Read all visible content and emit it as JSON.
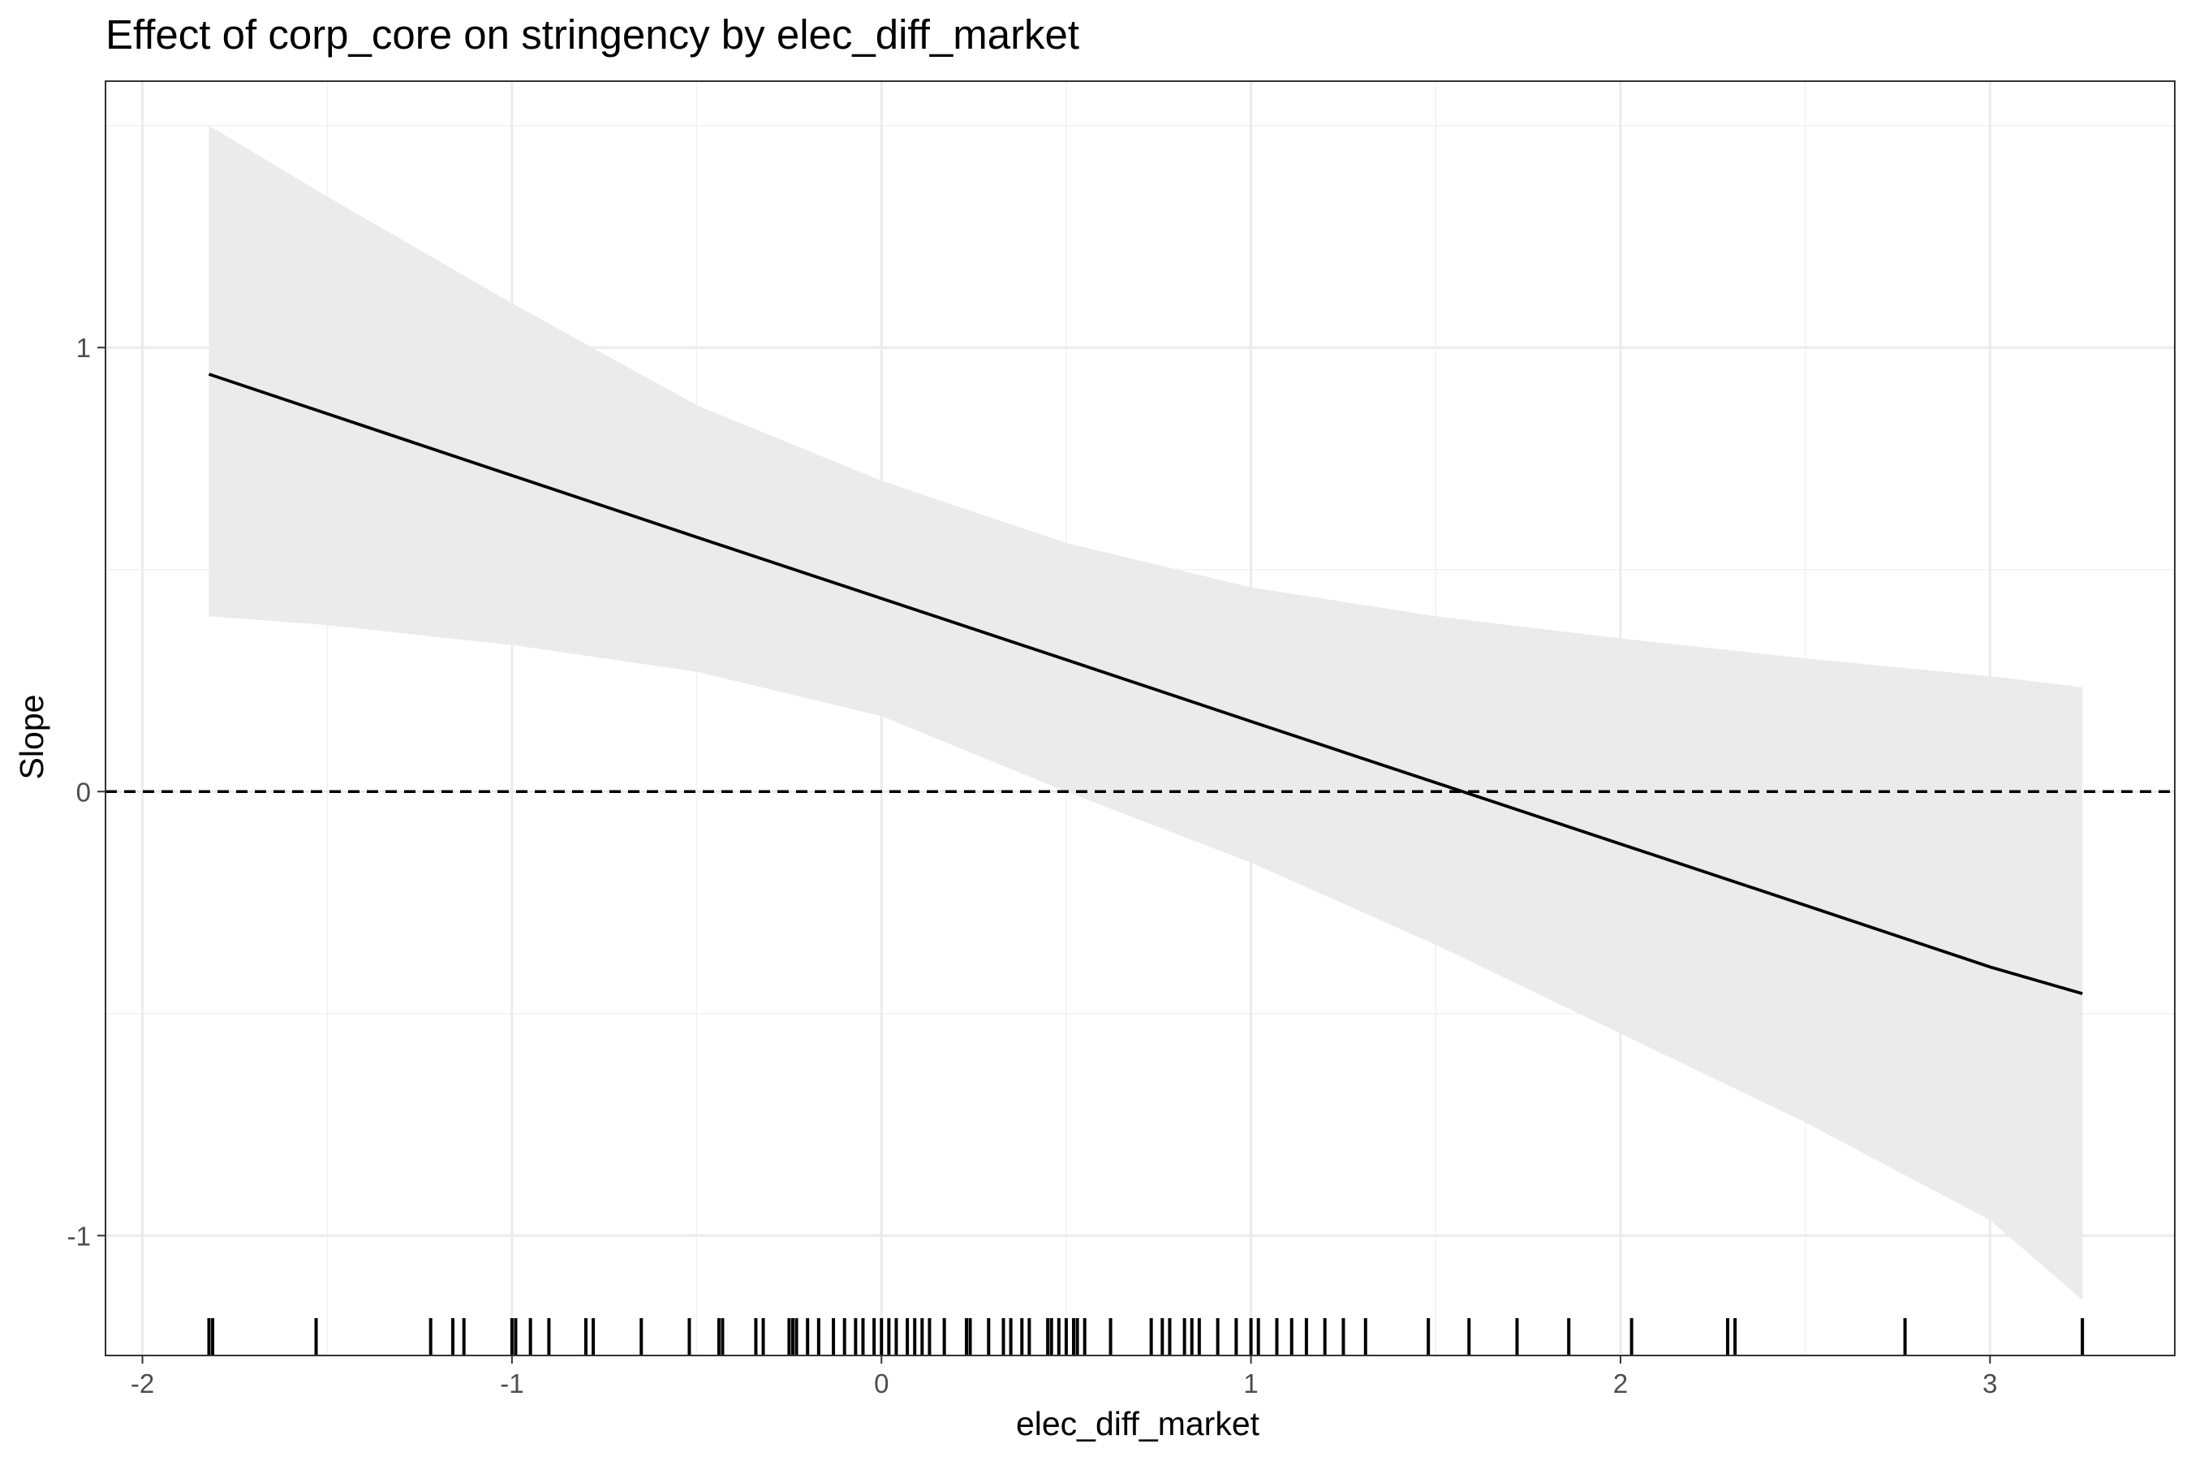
{
  "chart_data": {
    "type": "line",
    "title": "Effect of corp_core on stringency by elec_diff_market",
    "xlabel": "elec_diff_market",
    "ylabel": "Slope",
    "xlim": [
      -2.1,
      3.5
    ],
    "ylim": [
      -1.27,
      1.6
    ],
    "x_ticks": [
      -2,
      -1,
      0,
      1,
      2,
      3
    ],
    "y_ticks": [
      -1,
      0,
      1
    ],
    "x_tick_labels": [
      "-2",
      "-1",
      "0",
      "1",
      "2",
      "3"
    ],
    "y_tick_labels": [
      "-1",
      "0",
      "1"
    ],
    "grid": true,
    "reference_line": {
      "y": 0,
      "style": "dashed"
    },
    "series": [
      {
        "x": [
          -1.82,
          -1.5,
          -1.0,
          -0.5,
          0.0,
          0.5,
          1.0,
          1.5,
          2.0,
          2.5,
          3.0,
          3.25
        ],
        "values": [
          0.94,
          0.851,
          0.712,
          0.573,
          0.435,
          0.297,
          0.158,
          0.02,
          -0.118,
          -0.256,
          -0.395,
          -0.455
        ],
        "lower": [
          0.395,
          0.375,
          0.33,
          0.27,
          0.17,
          0.0,
          -0.16,
          -0.345,
          -0.545,
          -0.745,
          -0.965,
          -1.145
        ],
        "upper": [
          1.5,
          1.34,
          1.1,
          0.87,
          0.7,
          0.56,
          0.46,
          0.395,
          0.345,
          0.3,
          0.26,
          0.235
        ]
      }
    ],
    "rug": [
      -1.82,
      -1.81,
      -1.53,
      -1.22,
      -1.16,
      -1.13,
      -1.0,
      -0.99,
      -0.95,
      -0.9,
      -0.8,
      -0.78,
      -0.65,
      -0.52,
      -0.44,
      -0.43,
      -0.34,
      -0.32,
      -0.25,
      -0.24,
      -0.23,
      -0.2,
      -0.17,
      -0.13,
      -0.1,
      -0.07,
      -0.05,
      -0.02,
      0.0,
      0.02,
      0.04,
      0.07,
      0.09,
      0.11,
      0.13,
      0.17,
      0.23,
      0.24,
      0.29,
      0.33,
      0.35,
      0.38,
      0.4,
      0.45,
      0.46,
      0.48,
      0.5,
      0.52,
      0.53,
      0.55,
      0.62,
      0.73,
      0.76,
      0.78,
      0.82,
      0.84,
      0.86,
      0.91,
      0.96,
      1.0,
      1.02,
      1.07,
      1.11,
      1.15,
      1.2,
      1.25,
      1.31,
      1.48,
      1.59,
      1.72,
      1.86,
      2.03,
      2.29,
      2.31,
      2.77,
      3.25
    ]
  }
}
